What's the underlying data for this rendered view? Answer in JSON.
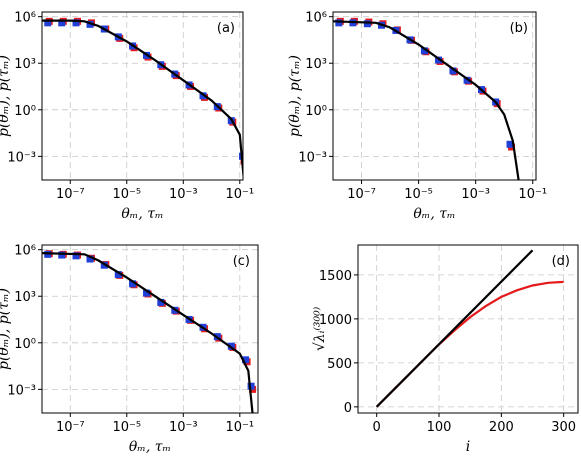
{
  "chart_data": [
    {
      "type": "line",
      "annotation": "(a)",
      "xlabel": "θₘ, τₘ",
      "ylabel": "p(θₘ), p(τₘ)",
      "xlog": true,
      "ylog": true,
      "grid": true,
      "xlim": [
        1e-08,
        0.13
      ],
      "ylim": [
        3e-05,
        2000000.0
      ],
      "xticks": [
        {
          "value": 1e-07,
          "label": "10⁻⁷"
        },
        {
          "value": 1e-05,
          "label": "10⁻⁵"
        },
        {
          "value": 0.001,
          "label": "10⁻³"
        },
        {
          "value": 0.1,
          "label": "10⁻¹"
        }
      ],
      "yticks": [
        {
          "value": 0.001,
          "label": "10⁻³"
        },
        {
          "value": 1,
          "label": "10⁰"
        },
        {
          "value": 1000,
          "label": "10³"
        },
        {
          "value": 1000000.0,
          "label": "10⁶"
        }
      ],
      "series": [
        {
          "color": "#e41a1c",
          "marker": "square",
          "x": [
            1.6e-08,
            5e-08,
            1.6e-07,
            5e-07,
            1.6e-06,
            5e-06,
            1.6e-05,
            5e-05,
            0.00016,
            0.0005,
            0.0016,
            0.005,
            0.016,
            0.05,
            0.125
          ],
          "values": [
            500000.0,
            500000.0,
            500000.0,
            400000.0,
            160000.0,
            40000.0,
            10000.0,
            2500,
            630,
            160,
            32,
            6.3,
            1.3,
            0.16,
            0.0005
          ]
        },
        {
          "color": "#1f3fd6",
          "marker": "square",
          "x": [
            1.6e-08,
            5e-08,
            1.6e-07,
            5e-07,
            1.6e-06,
            5e-06,
            1.6e-05,
            5e-05,
            0.00016,
            0.0005,
            0.0016,
            0.005,
            0.016,
            0.05,
            0.125
          ],
          "values": [
            400000.0,
            400000.0,
            400000.0,
            320000.0,
            160000.0,
            50000.0,
            13000.0,
            3200,
            800,
            200,
            40,
            8,
            1.6,
            0.2,
            0.001
          ]
        },
        {
          "color": "#000000",
          "marker": "none",
          "x": [
            1e-08,
            1e-07,
            3.2e-07,
            1e-06,
            1e-05,
            0.0001,
            0.001,
            0.01,
            0.05,
            0.1,
            0.14
          ],
          "values": [
            560000.0,
            560000.0,
            500000.0,
            250000.0,
            25000.0,
            1600,
            80,
            4,
            0.25,
            0.025,
            3e-05
          ]
        }
      ]
    },
    {
      "type": "line",
      "annotation": "(b)",
      "xlabel": "θₘ, τₘ",
      "ylabel": "p(θₘ), p(τₘ)",
      "xlog": true,
      "ylog": true,
      "grid": true,
      "xlim": [
        1e-08,
        0.13
      ],
      "ylim": [
        3e-05,
        2000000.0
      ],
      "xticks": [
        {
          "value": 1e-07,
          "label": "10⁻⁷"
        },
        {
          "value": 1e-05,
          "label": "10⁻⁵"
        },
        {
          "value": 0.001,
          "label": "10⁻³"
        },
        {
          "value": 0.1,
          "label": "10⁻¹"
        }
      ],
      "yticks": [
        {
          "value": 0.001,
          "label": "10⁻³"
        },
        {
          "value": 1,
          "label": "10⁰"
        },
        {
          "value": 1000,
          "label": "10³"
        },
        {
          "value": 1000000.0,
          "label": "10⁶"
        }
      ],
      "series": [
        {
          "color": "#e41a1c",
          "marker": "square",
          "x": [
            1.6e-08,
            5e-08,
            1.6e-07,
            5e-07,
            1.6e-06,
            5e-06,
            1.6e-05,
            5e-05,
            0.00016,
            0.0005,
            0.0016,
            0.005,
            0.016
          ],
          "values": [
            500000.0,
            500000.0,
            450000.0,
            350000.0,
            140000.0,
            30000.0,
            5500,
            1300,
            280,
            70,
            16,
            2.5,
            0.004
          ]
        },
        {
          "color": "#1f3fd6",
          "marker": "square",
          "x": [
            1.6e-08,
            5e-08,
            1.6e-07,
            5e-07,
            1.6e-06,
            5e-06,
            1.6e-05,
            5e-05,
            0.00016,
            0.0005,
            0.0016,
            0.005,
            0.016
          ],
          "values": [
            400000.0,
            400000.0,
            350000.0,
            280000.0,
            130000.0,
            32000.0,
            6300,
            1600,
            320,
            80,
            20,
            3.2,
            0.006
          ]
        },
        {
          "color": "#000000",
          "marker": "none",
          "x": [
            1e-08,
            3.2e-07,
            1e-06,
            1e-05,
            0.0001,
            0.001,
            0.005,
            0.01,
            0.02,
            0.032
          ],
          "values": [
            500000.0,
            400000.0,
            200000.0,
            16000.0,
            800,
            40,
            3.2,
            0.5,
            0.01,
            3e-05
          ]
        }
      ]
    },
    {
      "type": "line",
      "annotation": "(c)",
      "xlabel": "θₘ, τₘ",
      "ylabel": "p(θₘ), p(τₘ)",
      "xlog": true,
      "ylog": true,
      "grid": true,
      "xlim": [
        1e-08,
        0.44
      ],
      "ylim": [
        3e-05,
        2000000.0
      ],
      "xticks": [
        {
          "value": 1e-07,
          "label": "10⁻⁷"
        },
        {
          "value": 1e-05,
          "label": "10⁻⁵"
        },
        {
          "value": 0.001,
          "label": "10⁻³"
        },
        {
          "value": 0.1,
          "label": "10⁻¹"
        }
      ],
      "yticks": [
        {
          "value": 0.001,
          "label": "10⁻³"
        },
        {
          "value": 1,
          "label": "10⁰"
        },
        {
          "value": 1000,
          "label": "10³"
        },
        {
          "value": 1000000.0,
          "label": "10⁶"
        }
      ],
      "series": [
        {
          "color": "#e41a1c",
          "marker": "square",
          "x": [
            1.6e-08,
            5e-08,
            1.6e-07,
            5e-07,
            1.6e-06,
            5e-06,
            1.6e-05,
            5e-05,
            0.00016,
            0.0005,
            0.0016,
            0.005,
            0.016,
            0.05,
            0.16,
            0.25
          ],
          "values": [
            550000.0,
            500000.0,
            450000.0,
            280000.0,
            110000.0,
            22000.0,
            5500,
            1400,
            350,
            110,
            28,
            8,
            2,
            0.5,
            0.06,
            0.001
          ]
        },
        {
          "color": "#1f3fd6",
          "marker": "square",
          "x": [
            1.6e-08,
            5e-08,
            1.6e-07,
            5e-07,
            1.6e-06,
            5e-06,
            1.6e-05,
            5e-05,
            0.00016,
            0.0005,
            0.0016,
            0.005,
            0.016,
            0.05,
            0.16,
            0.25
          ],
          "values": [
            500000.0,
            450000.0,
            400000.0,
            250000.0,
            100000.0,
            25000.0,
            6300,
            1600,
            400,
            125,
            32,
            10,
            2.5,
            0.6,
            0.08,
            0.0016
          ]
        },
        {
          "color": "#000000",
          "marker": "none",
          "x": [
            1e-08,
            3.2e-07,
            1e-06,
            1e-05,
            0.0001,
            0.001,
            0.01,
            0.1,
            0.2,
            0.28
          ],
          "values": [
            600000.0,
            500000.0,
            200000.0,
            16000.0,
            1000,
            63,
            4,
            0.2,
            0.016,
            3e-05
          ]
        }
      ]
    },
    {
      "type": "line",
      "annotation": "(d)",
      "xlabel": "i",
      "ylabel": "√λᵢ⁽³⁰⁰⁾",
      "xlog": false,
      "ylog": false,
      "grid": true,
      "xlim": [
        -30,
        323
      ],
      "ylim": [
        -70,
        1840
      ],
      "xticks": [
        0,
        100,
        200,
        300
      ],
      "yticks": [
        0,
        500,
        1000,
        1500
      ],
      "series": [
        {
          "color": "#e41a1c",
          "marker": "none",
          "x": [
            0,
            25,
            50,
            75,
            100,
            125,
            150,
            175,
            200,
            225,
            250,
            275,
            300
          ],
          "values": [
            0,
            178,
            355,
            533,
            710,
            870,
            1020,
            1145,
            1250,
            1325,
            1380,
            1410,
            1420
          ]
        },
        {
          "color": "#000000",
          "marker": "none",
          "x": [
            0,
            250
          ],
          "values": [
            0,
            1780
          ]
        }
      ]
    }
  ]
}
